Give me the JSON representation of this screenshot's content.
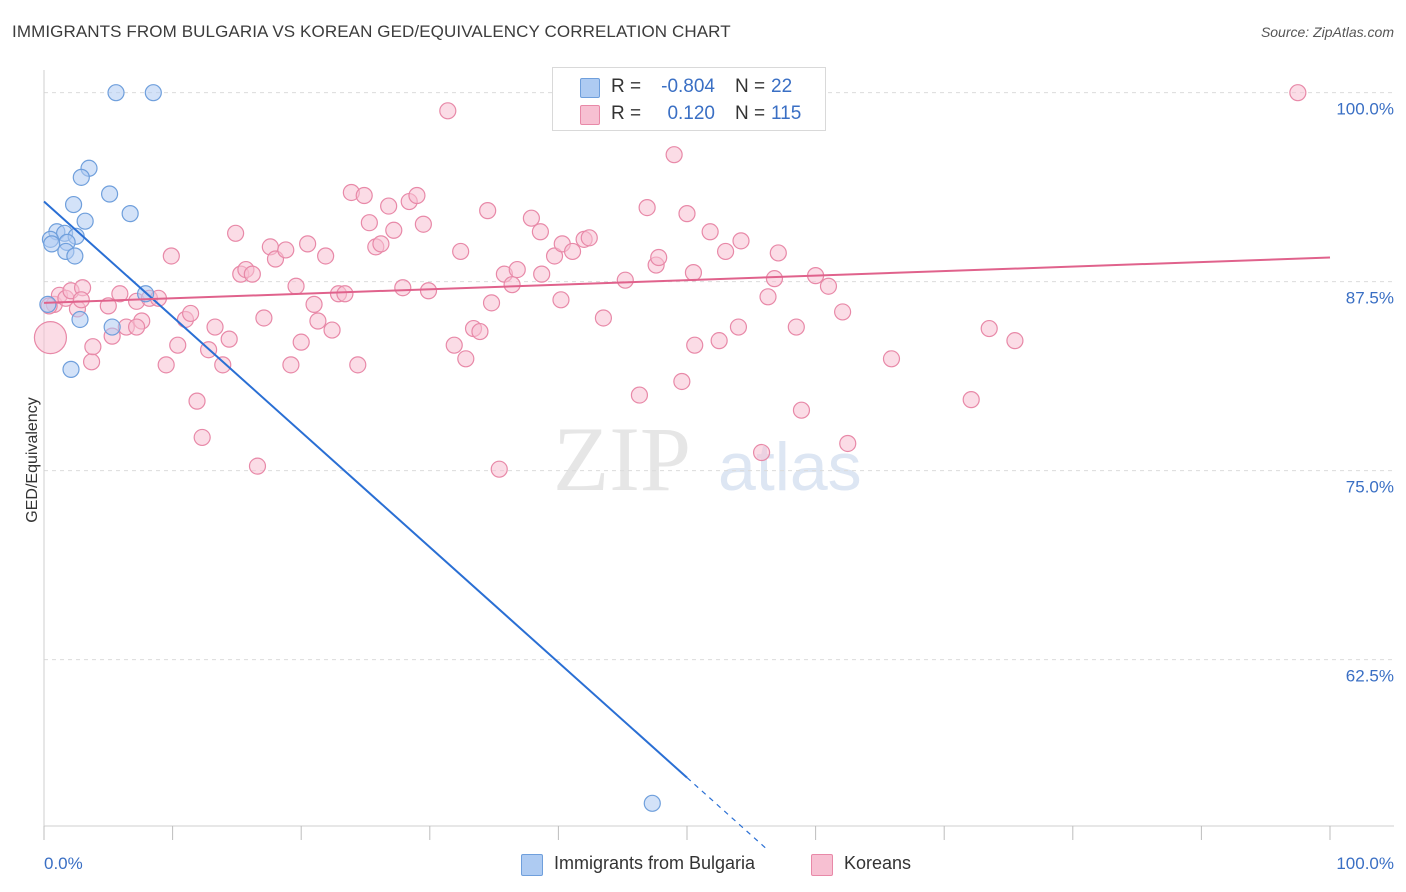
{
  "title": "IMMIGRANTS FROM BULGARIA VS KOREAN GED/EQUIVALENCY CORRELATION CHART",
  "source": "Source: ZipAtlas.com",
  "watermark": {
    "zip": "ZIP",
    "atlas": "atlas"
  },
  "colors": {
    "blue_fill": "#aecbf2",
    "blue_stroke": "#6f9fdc",
    "blue_line": "#2a6fd4",
    "pink_fill": "#f7c0d2",
    "pink_stroke": "#e889a8",
    "pink_line": "#e0628c",
    "axis_label": "#3a6fc4",
    "grid": "#dcdcdc"
  },
  "legend": {
    "rows": [
      {
        "r_label": "R =",
        "r_value": "-0.804",
        "n_label": "N =",
        "n_value": "22",
        "color": "blue"
      },
      {
        "r_label": "R =",
        "r_value": "0.120",
        "n_label": "N =",
        "n_value": "115",
        "color": "pink"
      }
    ]
  },
  "bottom_legend": [
    {
      "label": "Immigrants from Bulgaria",
      "color": "blue"
    },
    {
      "label": "Koreans",
      "color": "pink"
    }
  ],
  "chart_data": {
    "type": "scatter",
    "title": "IMMIGRANTS FROM BULGARIA VS KOREAN GED/EQUIVALENCY CORRELATION CHART",
    "xlabel": "",
    "ylabel": "GED/Equivalency",
    "xlim": [
      0,
      100
    ],
    "ylim": [
      51.5,
      101.5
    ],
    "x_tick_labels": [
      {
        "value": 0,
        "label": "0.0%"
      },
      {
        "value": 100,
        "label": "100.0%"
      }
    ],
    "y_tick_labels": [
      {
        "value": 100,
        "label": "100.0%"
      },
      {
        "value": 87.5,
        "label": "87.5%"
      },
      {
        "value": 75,
        "label": "75.0%"
      },
      {
        "value": 62.5,
        "label": "62.5%"
      }
    ],
    "x_minor_ticks": [
      0,
      10,
      20,
      30,
      40,
      50,
      60,
      70,
      80,
      90,
      100
    ],
    "grid": true,
    "series": [
      {
        "name": "Immigrants from Bulgaria",
        "color": "blue",
        "points": [
          [
            5.6,
            100.0
          ],
          [
            8.5,
            100.0
          ],
          [
            3.5,
            95.0
          ],
          [
            2.9,
            94.4
          ],
          [
            5.1,
            93.3
          ],
          [
            2.3,
            92.6
          ],
          [
            6.7,
            92.0
          ],
          [
            3.2,
            91.5
          ],
          [
            1.0,
            90.8
          ],
          [
            1.6,
            90.7
          ],
          [
            2.5,
            90.5
          ],
          [
            0.5,
            90.3
          ],
          [
            1.8,
            90.1
          ],
          [
            0.6,
            90.0
          ],
          [
            1.7,
            89.5
          ],
          [
            2.4,
            89.2
          ],
          [
            7.9,
            86.7
          ],
          [
            0.3,
            86.0
          ],
          [
            2.8,
            85.0
          ],
          [
            5.3,
            84.5
          ],
          [
            2.1,
            81.7
          ],
          [
            47.3,
            53.0
          ]
        ],
        "trend": {
          "x0": 0.0,
          "y0": 92.8,
          "x1": 50.0,
          "y1": 54.7,
          "dash_x1": 56.3,
          "dash_y1": 49.9
        }
      },
      {
        "name": "Koreans",
        "color": "pink",
        "points": [
          [
            0.5,
            83.8
          ],
          [
            0.8,
            86.0
          ],
          [
            1.2,
            86.6
          ],
          [
            1.7,
            86.4
          ],
          [
            2.1,
            86.9
          ],
          [
            2.6,
            85.7
          ],
          [
            3.0,
            87.1
          ],
          [
            3.7,
            82.2
          ],
          [
            5.0,
            85.9
          ],
          [
            5.3,
            83.9
          ],
          [
            5.9,
            86.7
          ],
          [
            6.4,
            84.5
          ],
          [
            7.2,
            86.2
          ],
          [
            7.6,
            84.9
          ],
          [
            8.2,
            86.4
          ],
          [
            8.9,
            86.4
          ],
          [
            9.5,
            82.0
          ],
          [
            9.9,
            89.2
          ],
          [
            10.4,
            83.3
          ],
          [
            11.0,
            85.0
          ],
          [
            11.4,
            85.4
          ],
          [
            11.9,
            79.6
          ],
          [
            12.3,
            77.2
          ],
          [
            12.8,
            83.0
          ],
          [
            13.3,
            84.5
          ],
          [
            13.9,
            82.0
          ],
          [
            14.4,
            83.7
          ],
          [
            14.9,
            90.7
          ],
          [
            15.3,
            88.0
          ],
          [
            15.7,
            88.3
          ],
          [
            16.2,
            88.0
          ],
          [
            16.6,
            75.3
          ],
          [
            17.1,
            85.1
          ],
          [
            17.6,
            89.8
          ],
          [
            18.0,
            89.0
          ],
          [
            18.8,
            89.6
          ],
          [
            19.2,
            82.0
          ],
          [
            19.6,
            87.2
          ],
          [
            20.0,
            83.5
          ],
          [
            20.5,
            90.0
          ],
          [
            21.0,
            86.0
          ],
          [
            21.3,
            84.9
          ],
          [
            21.9,
            89.2
          ],
          [
            22.4,
            84.3
          ],
          [
            22.9,
            86.7
          ],
          [
            23.4,
            86.7
          ],
          [
            23.9,
            93.4
          ],
          [
            24.4,
            82.0
          ],
          [
            24.9,
            93.2
          ],
          [
            25.3,
            91.4
          ],
          [
            25.8,
            89.8
          ],
          [
            26.2,
            90.0
          ],
          [
            26.8,
            92.5
          ],
          [
            27.2,
            90.9
          ],
          [
            27.9,
            87.1
          ],
          [
            28.4,
            92.8
          ],
          [
            29.0,
            93.2
          ],
          [
            29.5,
            91.3
          ],
          [
            29.9,
            86.9
          ],
          [
            31.4,
            98.8
          ],
          [
            31.9,
            83.3
          ],
          [
            32.4,
            89.5
          ],
          [
            32.8,
            82.4
          ],
          [
            33.4,
            84.4
          ],
          [
            33.9,
            84.2
          ],
          [
            34.5,
            92.2
          ],
          [
            34.8,
            86.1
          ],
          [
            35.4,
            75.1
          ],
          [
            35.8,
            88.0
          ],
          [
            36.4,
            87.3
          ],
          [
            36.8,
            88.3
          ],
          [
            37.9,
            91.7
          ],
          [
            38.7,
            88.0
          ],
          [
            38.6,
            90.8
          ],
          [
            39.7,
            89.2
          ],
          [
            40.2,
            86.3
          ],
          [
            40.3,
            90.0
          ],
          [
            41.1,
            89.5
          ],
          [
            42.0,
            90.3
          ],
          [
            42.4,
            90.4
          ],
          [
            43.5,
            85.1
          ],
          [
            45.2,
            87.6
          ],
          [
            46.3,
            80.0
          ],
          [
            46.9,
            92.4
          ],
          [
            47.6,
            88.6
          ],
          [
            47.8,
            89.1
          ],
          [
            49.0,
            95.9
          ],
          [
            49.6,
            80.9
          ],
          [
            50.0,
            92.0
          ],
          [
            50.5,
            88.1
          ],
          [
            50.6,
            83.3
          ],
          [
            51.8,
            90.8
          ],
          [
            52.5,
            83.6
          ],
          [
            53.0,
            89.5
          ],
          [
            54.0,
            84.5
          ],
          [
            54.2,
            90.2
          ],
          [
            55.8,
            76.2
          ],
          [
            56.3,
            86.5
          ],
          [
            56.8,
            87.7
          ],
          [
            57.1,
            89.4
          ],
          [
            58.5,
            84.5
          ],
          [
            58.9,
            79.0
          ],
          [
            60.0,
            87.9
          ],
          [
            61.0,
            87.2
          ],
          [
            62.1,
            85.5
          ],
          [
            62.5,
            76.8
          ],
          [
            65.9,
            82.4
          ],
          [
            72.1,
            79.7
          ],
          [
            73.5,
            84.4
          ],
          [
            75.5,
            83.6
          ],
          [
            97.5,
            100.0
          ],
          [
            3.8,
            83.2
          ],
          [
            0.4,
            85.9
          ],
          [
            2.9,
            86.3
          ],
          [
            7.2,
            84.5
          ]
        ],
        "trend": {
          "x0": 0.0,
          "y0": 86.1,
          "x1": 100.0,
          "y1": 89.1
        }
      }
    ]
  }
}
